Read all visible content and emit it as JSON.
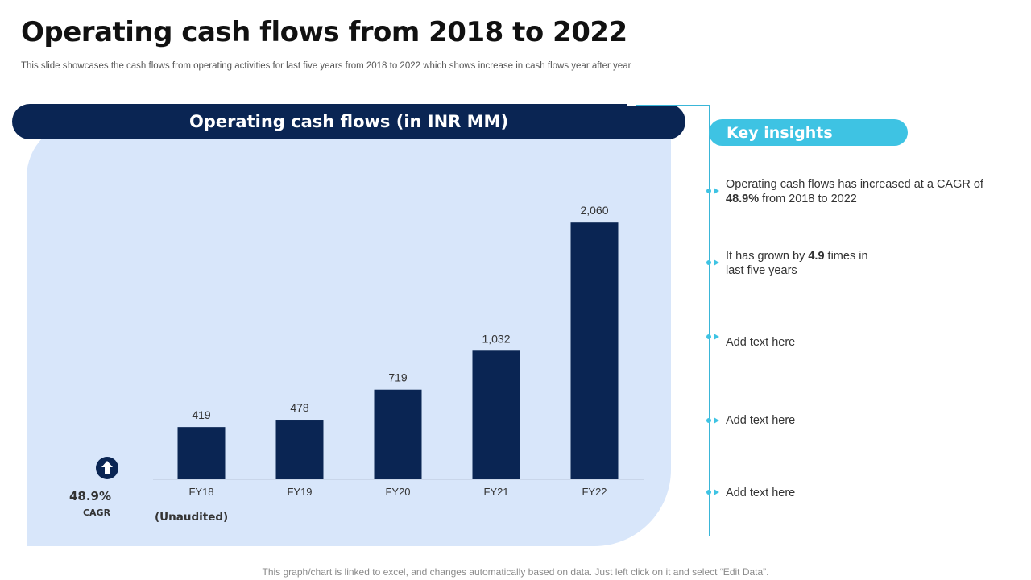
{
  "slide": {
    "title": "Operating cash flows from 2018 to 2022",
    "subtitle": "This slide showcases the cash flows from operating activities for last five years from 2018 to  2022 which shows increase in cash flows year after year",
    "footer": "This graph/chart is linked to excel, and changes automatically based on data. Just left click on it and select “Edit Data”."
  },
  "panel": {
    "header": "Operating cash flows (in INR MM)",
    "cagr_value": "48.9%",
    "cagr_label": "CAGR",
    "note": "(Unaudited)",
    "arrow_icon": "arrow-up-circle-icon"
  },
  "insights": {
    "heading": "Key insights",
    "items": [
      {
        "parts": [
          "Operating cash flows has increased at a CAGR of ",
          "48.9%",
          " from 2018 to 2022"
        ]
      },
      {
        "parts": [
          "It has grown by ",
          "4.9",
          " times in last five years"
        ]
      },
      {
        "parts": [
          "Add text here",
          "",
          ""
        ]
      },
      {
        "parts": [
          "Add text here",
          "",
          ""
        ]
      },
      {
        "parts": [
          "Add text here",
          "",
          ""
        ]
      }
    ]
  },
  "colors": {
    "bar": "#0a2553",
    "panel_bg": "#d8e6fa",
    "accent": "#3ec3e3",
    "connector": "#3ab6d8"
  },
  "chart_data": {
    "type": "bar",
    "categories": [
      "FY18",
      "FY19",
      "FY20",
      "FY21",
      "FY22"
    ],
    "values": [
      419,
      478,
      719,
      1032,
      2060
    ],
    "data_labels": [
      "419",
      "478",
      "719",
      "1,032",
      "2,060"
    ],
    "ylim": [
      0,
      2100
    ],
    "grid": false
  }
}
